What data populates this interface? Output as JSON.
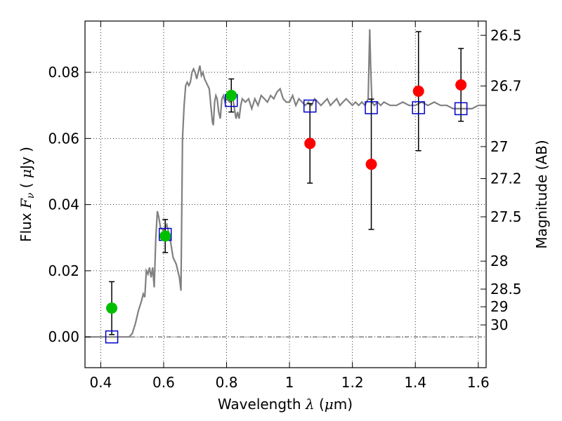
{
  "chart_data": {
    "type": "scatter",
    "xlabel": {
      "prefix": "Wavelength  ",
      "symbol": "λ",
      "unit_open": " (",
      "unit_mu": "μ",
      "unit_rest": "m)"
    },
    "ylabel": {
      "prefix": "Flux  ",
      "symbol": "F",
      "sub": "ν",
      "unit_open": "  ( ",
      "unit_mu": "μ",
      "unit_rest": "Jy )"
    },
    "ylabel_right": "Magnitude (AB)",
    "xlim": [
      0.35,
      1.625
    ],
    "ylim": [
      -0.0093,
      0.0955
    ],
    "grid": true,
    "x_ticks": [
      {
        "value": 0.4,
        "label": "0.4"
      },
      {
        "value": 0.6,
        "label": "0.6"
      },
      {
        "value": 0.8,
        "label": "0.8"
      },
      {
        "value": 1.0,
        "label": "1"
      },
      {
        "value": 1.2,
        "label": "1.2"
      },
      {
        "value": 1.4,
        "label": "1.4"
      },
      {
        "value": 1.6,
        "label": "1.6"
      }
    ],
    "y_ticks": [
      {
        "value": 0.0,
        "label": "0.00"
      },
      {
        "value": 0.02,
        "label": "0.02"
      },
      {
        "value": 0.04,
        "label": "0.04"
      },
      {
        "value": 0.06,
        "label": "0.06"
      },
      {
        "value": 0.08,
        "label": "0.08"
      }
    ],
    "right_ticks": [
      {
        "mag": 26.5,
        "label": "26.5"
      },
      {
        "mag": 26.7,
        "label": "26.7"
      },
      {
        "mag": 27.0,
        "label": "27"
      },
      {
        "mag": 27.2,
        "label": "27.2"
      },
      {
        "mag": 27.5,
        "label": "27.5"
      },
      {
        "mag": 28.0,
        "label": "28"
      },
      {
        "mag": 28.5,
        "label": "28.5"
      },
      {
        "mag": 29.0,
        "label": "29"
      },
      {
        "mag": 30.0,
        "label": "30"
      }
    ],
    "model_spectrum": {
      "color": "#808080",
      "points": [
        [
          0.35,
          0.0
        ],
        [
          0.49,
          0.0
        ],
        [
          0.5,
          0.001
        ],
        [
          0.51,
          0.004
        ],
        [
          0.52,
          0.008
        ],
        [
          0.53,
          0.011
        ],
        [
          0.535,
          0.013
        ],
        [
          0.54,
          0.012
        ],
        [
          0.545,
          0.02
        ],
        [
          0.55,
          0.019
        ],
        [
          0.555,
          0.021
        ],
        [
          0.56,
          0.018
        ],
        [
          0.565,
          0.021
        ],
        [
          0.57,
          0.015
        ],
        [
          0.575,
          0.03
        ],
        [
          0.58,
          0.038
        ],
        [
          0.585,
          0.036
        ],
        [
          0.59,
          0.033
        ],
        [
          0.6,
          0.032
        ],
        [
          0.61,
          0.034
        ],
        [
          0.62,
          0.03
        ],
        [
          0.63,
          0.024
        ],
        [
          0.64,
          0.022
        ],
        [
          0.645,
          0.02
        ],
        [
          0.65,
          0.018
        ],
        [
          0.655,
          0.014
        ],
        [
          0.66,
          0.06
        ],
        [
          0.665,
          0.07
        ],
        [
          0.67,
          0.076
        ],
        [
          0.675,
          0.077
        ],
        [
          0.68,
          0.076
        ],
        [
          0.685,
          0.077
        ],
        [
          0.69,
          0.08
        ],
        [
          0.695,
          0.081
        ],
        [
          0.7,
          0.08
        ],
        [
          0.705,
          0.078
        ],
        [
          0.71,
          0.08
        ],
        [
          0.715,
          0.082
        ],
        [
          0.72,
          0.079
        ],
        [
          0.725,
          0.08
        ],
        [
          0.73,
          0.078
        ],
        [
          0.735,
          0.077
        ],
        [
          0.74,
          0.076
        ],
        [
          0.745,
          0.075
        ],
        [
          0.75,
          0.07
        ],
        [
          0.755,
          0.065
        ],
        [
          0.758,
          0.064
        ],
        [
          0.762,
          0.071
        ],
        [
          0.766,
          0.073
        ],
        [
          0.77,
          0.072
        ],
        [
          0.775,
          0.068
        ],
        [
          0.78,
          0.066
        ],
        [
          0.785,
          0.072
        ],
        [
          0.79,
          0.073
        ],
        [
          0.795,
          0.071
        ],
        [
          0.8,
          0.072
        ],
        [
          0.81,
          0.071
        ],
        [
          0.82,
          0.072
        ],
        [
          0.825,
          0.069
        ],
        [
          0.83,
          0.066
        ],
        [
          0.835,
          0.068
        ],
        [
          0.84,
          0.066
        ],
        [
          0.845,
          0.07
        ],
        [
          0.85,
          0.072
        ],
        [
          0.86,
          0.071
        ],
        [
          0.87,
          0.072
        ],
        [
          0.88,
          0.069
        ],
        [
          0.89,
          0.072
        ],
        [
          0.9,
          0.07
        ],
        [
          0.91,
          0.073
        ],
        [
          0.92,
          0.072
        ],
        [
          0.93,
          0.071
        ],
        [
          0.94,
          0.073
        ],
        [
          0.95,
          0.072
        ],
        [
          0.96,
          0.074
        ],
        [
          0.97,
          0.075
        ],
        [
          0.98,
          0.072
        ],
        [
          0.99,
          0.071
        ],
        [
          1.0,
          0.071
        ],
        [
          1.01,
          0.073
        ],
        [
          1.02,
          0.07
        ],
        [
          1.03,
          0.072
        ],
        [
          1.04,
          0.071
        ],
        [
          1.05,
          0.07
        ],
        [
          1.06,
          0.071
        ],
        [
          1.07,
          0.07
        ],
        [
          1.08,
          0.072
        ],
        [
          1.09,
          0.071
        ],
        [
          1.1,
          0.07
        ],
        [
          1.11,
          0.071
        ],
        [
          1.12,
          0.072
        ],
        [
          1.13,
          0.07
        ],
        [
          1.14,
          0.071
        ],
        [
          1.15,
          0.072
        ],
        [
          1.16,
          0.07
        ],
        [
          1.17,
          0.071
        ],
        [
          1.18,
          0.072
        ],
        [
          1.19,
          0.071
        ],
        [
          1.2,
          0.07
        ],
        [
          1.21,
          0.071
        ],
        [
          1.22,
          0.07
        ],
        [
          1.23,
          0.071
        ],
        [
          1.24,
          0.07
        ],
        [
          1.245,
          0.071
        ],
        [
          1.25,
          0.072
        ],
        [
          1.255,
          0.093
        ],
        [
          1.258,
          0.082
        ],
        [
          1.262,
          0.071
        ],
        [
          1.27,
          0.07
        ],
        [
          1.28,
          0.071
        ],
        [
          1.29,
          0.07
        ],
        [
          1.3,
          0.071
        ],
        [
          1.32,
          0.07
        ],
        [
          1.34,
          0.07
        ],
        [
          1.36,
          0.071
        ],
        [
          1.38,
          0.07
        ],
        [
          1.4,
          0.07
        ],
        [
          1.42,
          0.071
        ],
        [
          1.44,
          0.07
        ],
        [
          1.46,
          0.071
        ],
        [
          1.48,
          0.07
        ],
        [
          1.5,
          0.07
        ],
        [
          1.52,
          0.069
        ],
        [
          1.54,
          0.069
        ],
        [
          1.56,
          0.069
        ],
        [
          1.58,
          0.069
        ],
        [
          1.6,
          0.07
        ],
        [
          1.625,
          0.07
        ]
      ]
    },
    "observed": [
      {
        "x": 0.435,
        "y": 0.0087,
        "err": 0.008,
        "color": "#00bf00"
      },
      {
        "x": 0.605,
        "y": 0.0305,
        "err": 0.005,
        "color": "#00bf00"
      },
      {
        "x": 0.815,
        "y": 0.073,
        "err": 0.005,
        "color": "#00bf00"
      },
      {
        "x": 1.065,
        "y": 0.0585,
        "err": 0.012,
        "color": "#ff0000"
      },
      {
        "x": 1.26,
        "y": 0.0522,
        "err": 0.0197,
        "color": "#ff0000"
      },
      {
        "x": 1.41,
        "y": 0.0743,
        "err": 0.018,
        "color": "#ff0000"
      },
      {
        "x": 1.545,
        "y": 0.0762,
        "err": 0.011,
        "color": "#ff0000"
      }
    ],
    "model_bands": {
      "color": "#0000cc",
      "points": [
        [
          0.435,
          0.0
        ],
        [
          0.605,
          0.031
        ],
        [
          0.815,
          0.0715
        ],
        [
          1.065,
          0.0698
        ],
        [
          1.26,
          0.0693
        ],
        [
          1.41,
          0.0693
        ],
        [
          1.545,
          0.069
        ]
      ]
    }
  }
}
